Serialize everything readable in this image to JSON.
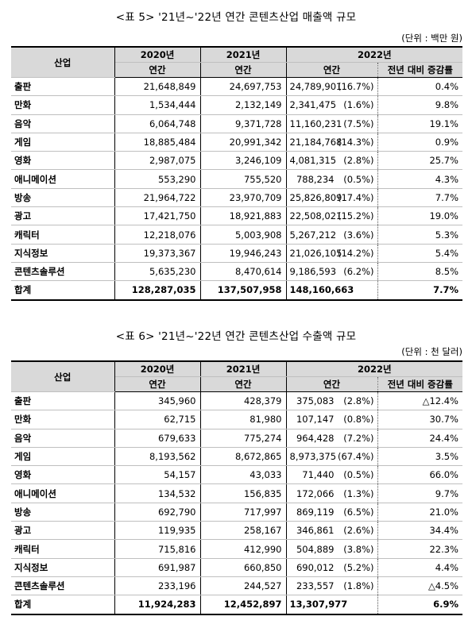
{
  "table5": {
    "caption": "<표 5> '21년~'22년 연간 콘텐츠산업 매출액 규모",
    "unit": "(단위 : 백만 원)",
    "headers": {
      "industry": "산업",
      "y2020": "2020년",
      "y2021": "2021년",
      "y2022": "2022년",
      "annual": "연간",
      "yoy": "전년 대비 증감률"
    },
    "rows": [
      {
        "industry": "출판",
        "y2020": "21,648,849",
        "y2021": "24,697,753",
        "y2022": "24,789,901",
        "share": "(16.7%)",
        "yoy": "0.4%"
      },
      {
        "industry": "만화",
        "y2020": "1,534,444",
        "y2021": "2,132,149",
        "y2022": "2,341,475",
        "share": "(1.6%)",
        "yoy": "9.8%"
      },
      {
        "industry": "음악",
        "y2020": "6,064,748",
        "y2021": "9,371,728",
        "y2022": "11,160,231",
        "share": "(7.5%)",
        "yoy": "19.1%"
      },
      {
        "industry": "게임",
        "y2020": "18,885,484",
        "y2021": "20,991,342",
        "y2022": "21,184,768",
        "share": "(14.3%)",
        "yoy": "0.9%"
      },
      {
        "industry": "영화",
        "y2020": "2,987,075",
        "y2021": "3,246,109",
        "y2022": "4,081,315",
        "share": "(2.8%)",
        "yoy": "25.7%"
      },
      {
        "industry": "애니메이션",
        "y2020": "553,290",
        "y2021": "755,520",
        "y2022": "788,234",
        "share": "(0.5%)",
        "yoy": "4.3%"
      },
      {
        "industry": "방송",
        "y2020": "21,964,722",
        "y2021": "23,970,709",
        "y2022": "25,826,809",
        "share": "(17.4%)",
        "yoy": "7.7%"
      },
      {
        "industry": "광고",
        "y2020": "17,421,750",
        "y2021": "18,921,883",
        "y2022": "22,508,021",
        "share": "(15.2%)",
        "yoy": "19.0%"
      },
      {
        "industry": "캐릭터",
        "y2020": "12,218,076",
        "y2021": "5,003,908",
        "y2022": "5,267,212",
        "share": "(3.6%)",
        "yoy": "5.3%"
      },
      {
        "industry": "지식정보",
        "y2020": "19,373,367",
        "y2021": "19,946,243",
        "y2022": "21,026,105",
        "share": "(14.2%)",
        "yoy": "5.4%"
      },
      {
        "industry": "콘텐츠솔루션",
        "y2020": "5,635,230",
        "y2021": "8,470,614",
        "y2022": "9,186,593",
        "share": "(6.2%)",
        "yoy": "8.5%"
      }
    ],
    "total": {
      "industry": "합계",
      "y2020": "128,287,035",
      "y2021": "137,507,958",
      "y2022": "148,160,663",
      "share": "",
      "yoy": "7.7%"
    }
  },
  "table6": {
    "caption": "<표 6> '21년~'22년 연간 콘텐츠산업 수출액 규모",
    "unit": "(단위 : 천 달러)",
    "headers": {
      "industry": "산업",
      "y2020": "2020년",
      "y2021": "2021년",
      "y2022": "2022년",
      "annual": "연간",
      "yoy": "전년 대비 증감률"
    },
    "rows": [
      {
        "industry": "출판",
        "y2020": "345,960",
        "y2021": "428,379",
        "y2022": "375,083",
        "share": "(2.8%)",
        "yoy": "△12.4%"
      },
      {
        "industry": "만화",
        "y2020": "62,715",
        "y2021": "81,980",
        "y2022": "107,147",
        "share": "(0.8%)",
        "yoy": "30.7%"
      },
      {
        "industry": "음악",
        "y2020": "679,633",
        "y2021": "775,274",
        "y2022": "964,428",
        "share": "(7.2%)",
        "yoy": "24.4%"
      },
      {
        "industry": "게임",
        "y2020": "8,193,562",
        "y2021": "8,672,865",
        "y2022": "8,973,375",
        "share": "(67.4%)",
        "yoy": "3.5%"
      },
      {
        "industry": "영화",
        "y2020": "54,157",
        "y2021": "43,033",
        "y2022": "71,440",
        "share": "(0.5%)",
        "yoy": "66.0%"
      },
      {
        "industry": "애니메이션",
        "y2020": "134,532",
        "y2021": "156,835",
        "y2022": "172,066",
        "share": "(1.3%)",
        "yoy": "9.7%"
      },
      {
        "industry": "방송",
        "y2020": "692,790",
        "y2021": "717,997",
        "y2022": "869,119",
        "share": "(6.5%)",
        "yoy": "21.0%"
      },
      {
        "industry": "광고",
        "y2020": "119,935",
        "y2021": "258,167",
        "y2022": "346,861",
        "share": "(2.6%)",
        "yoy": "34.4%"
      },
      {
        "industry": "캐릭터",
        "y2020": "715,816",
        "y2021": "412,990",
        "y2022": "504,889",
        "share": "(3.8%)",
        "yoy": "22.3%"
      },
      {
        "industry": "지식정보",
        "y2020": "691,987",
        "y2021": "660,850",
        "y2022": "690,012",
        "share": "(5.2%)",
        "yoy": "4.4%"
      },
      {
        "industry": "콘텐츠솔루션",
        "y2020": "233,196",
        "y2021": "244,527",
        "y2022": "233,557",
        "share": "(1.8%)",
        "yoy": "△4.5%"
      }
    ],
    "total": {
      "industry": "합계",
      "y2020": "11,924,283",
      "y2021": "12,452,897",
      "y2022": "13,307,977",
      "share": "",
      "yoy": "6.9%"
    }
  }
}
